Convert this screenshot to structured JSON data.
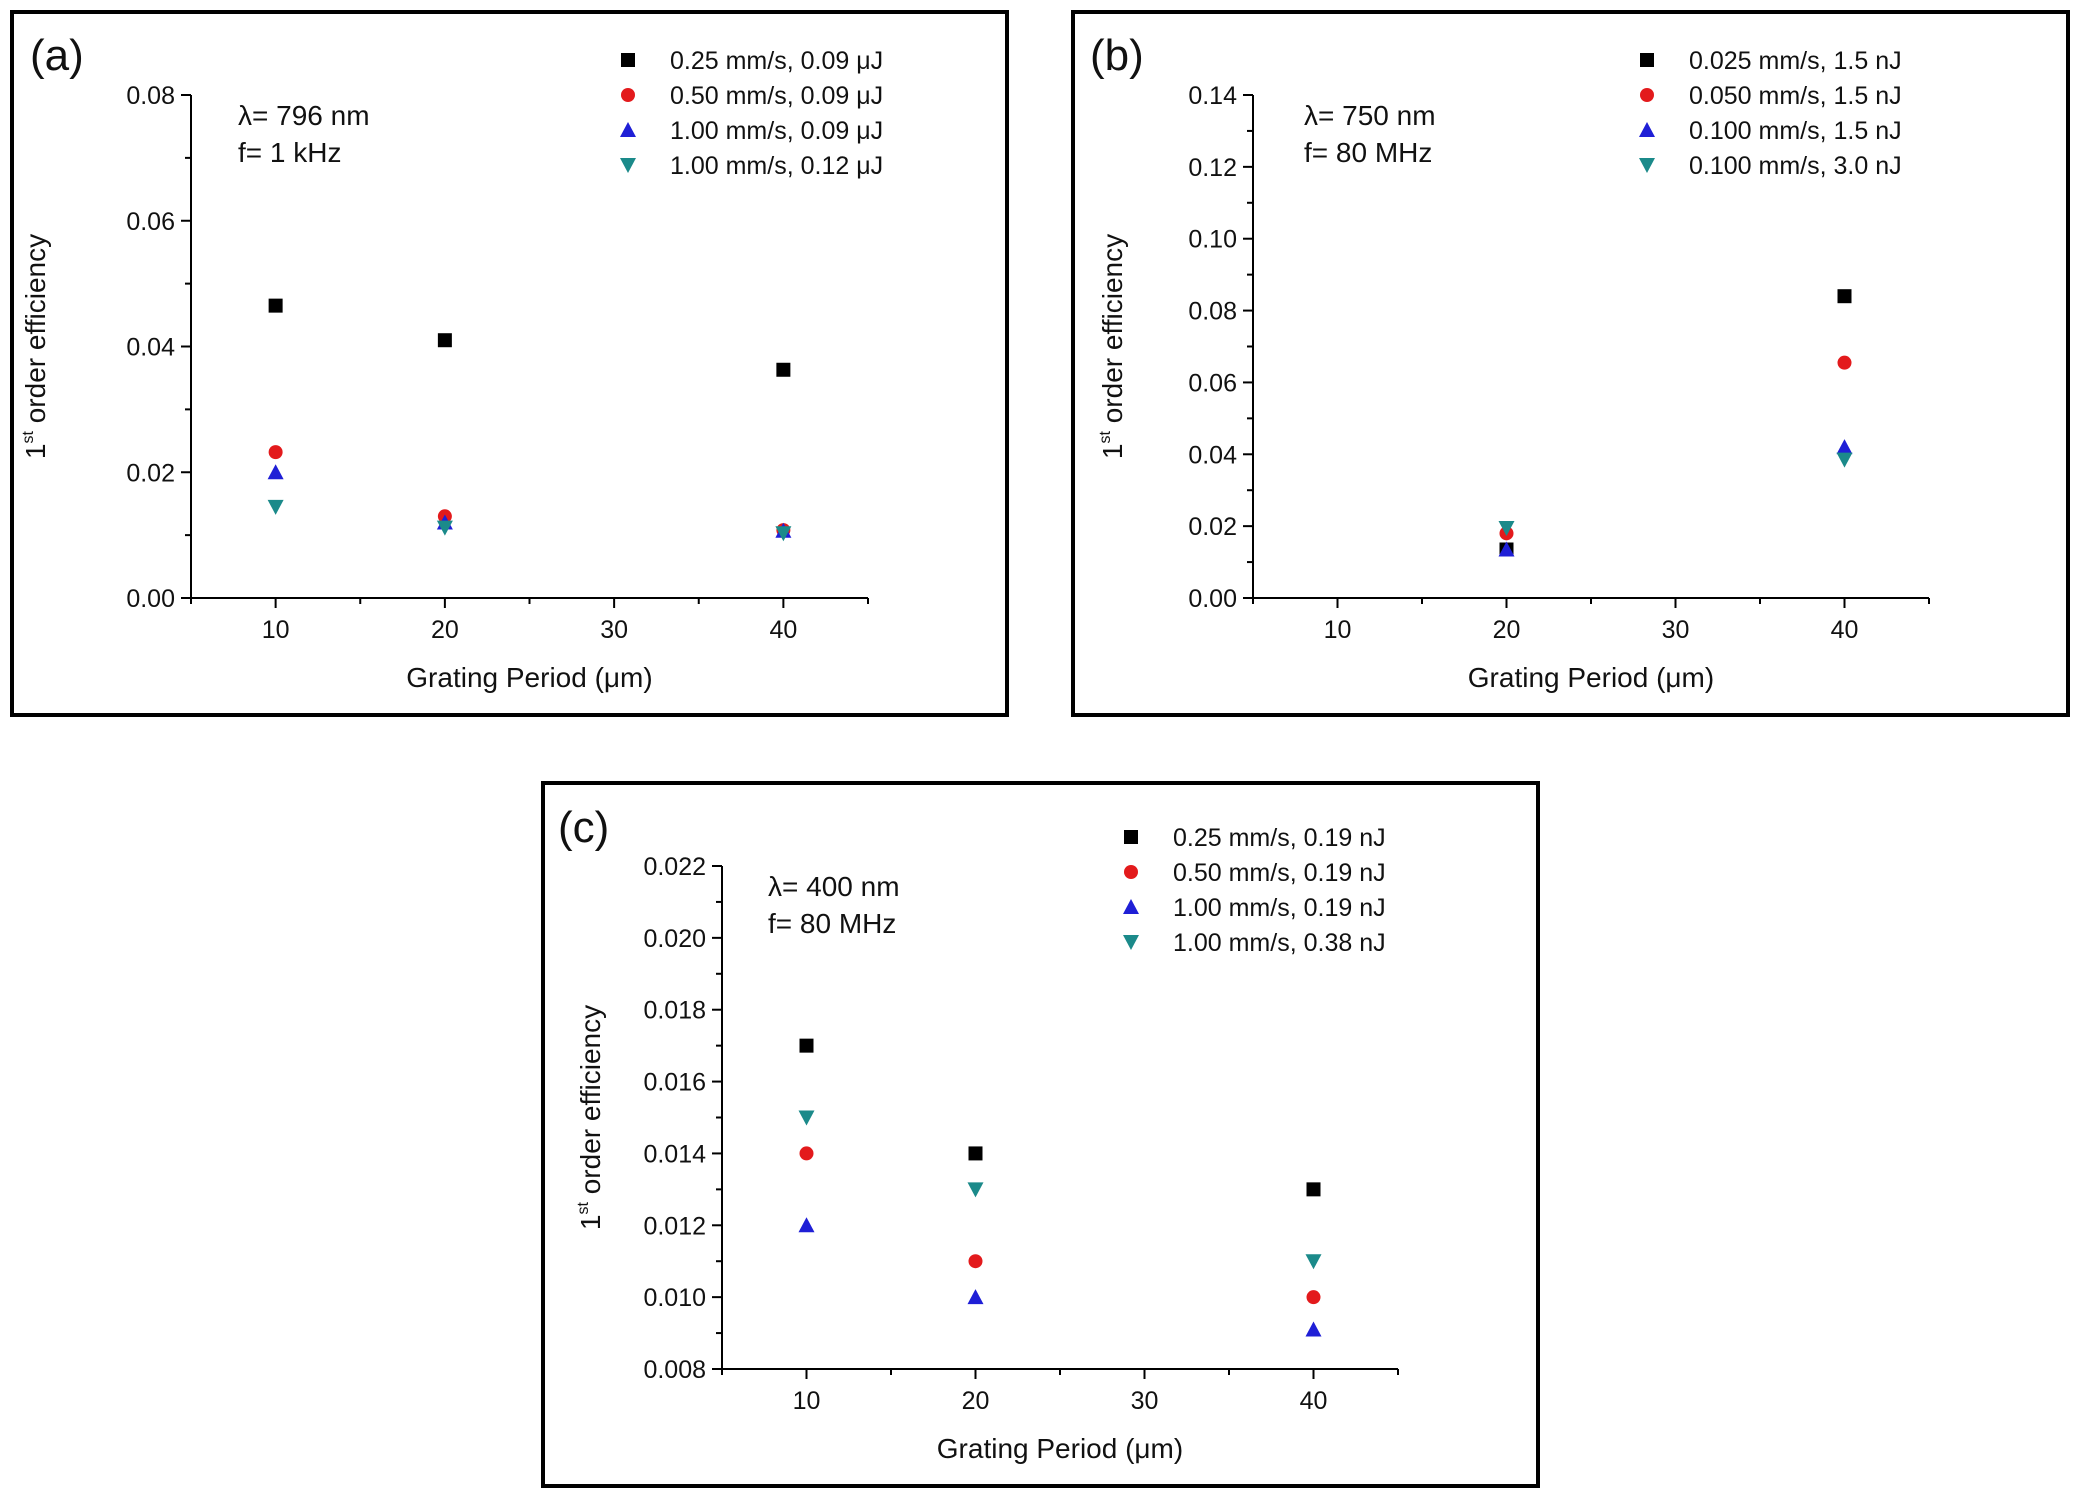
{
  "colors": {
    "black": "#000000",
    "red": "#e31a1c",
    "blue": "#1f1fd6",
    "teal": "#1b8a8a"
  },
  "chart_data": [
    {
      "panel": "a",
      "panel_label": "(a)",
      "type": "scatter",
      "xlabel": "Grating Period (μm)",
      "ylabel": "order efficiency",
      "ylabel_prefix": "1",
      "ylabel_sup": "st",
      "annotation_lines": [
        "λ= 796 nm",
        "f= 1 kHz"
      ],
      "xlim": [
        5,
        45
      ],
      "ylim": [
        0,
        0.08
      ],
      "xticks": [
        10,
        20,
        30,
        40
      ],
      "xtick_labels": [
        "10",
        "20",
        "30",
        "40"
      ],
      "yticks": [
        0,
        0.02,
        0.04,
        0.06,
        0.08
      ],
      "ytick_labels": [
        "0.00",
        "0.02",
        "0.04",
        "0.06",
        "0.08"
      ],
      "x": [
        10,
        20,
        40
      ],
      "series": [
        {
          "name": "0.25 mm/s, 0.09 μJ",
          "marker": "square",
          "color": "#000000",
          "values": [
            0.0465,
            0.041,
            0.0363
          ]
        },
        {
          "name": "0.50 mm/s, 0.09 μJ",
          "marker": "circle",
          "color": "#e31a1c",
          "values": [
            0.0232,
            0.013,
            0.0108
          ]
        },
        {
          "name": "1.00 mm/s, 0.09 μJ",
          "marker": "triangle-up",
          "color": "#1f1fd6",
          "values": [
            0.02,
            0.012,
            0.0107
          ]
        },
        {
          "name": "1.00 mm/s, 0.12 μJ",
          "marker": "triangle-down",
          "color": "#1b8a8a",
          "values": [
            0.0145,
            0.0112,
            0.0103
          ]
        }
      ]
    },
    {
      "panel": "b",
      "panel_label": "(b)",
      "type": "scatter",
      "xlabel": "Grating Period (μm)",
      "ylabel": "order efficiency",
      "ylabel_prefix": "1",
      "ylabel_sup": "st",
      "annotation_lines": [
        "λ= 750 nm",
        "f= 80 MHz"
      ],
      "xlim": [
        5,
        45
      ],
      "ylim": [
        0,
        0.14
      ],
      "xticks": [
        10,
        20,
        30,
        40
      ],
      "xtick_labels": [
        "10",
        "20",
        "30",
        "40"
      ],
      "yticks": [
        0,
        0.02,
        0.04,
        0.06,
        0.08,
        0.1,
        0.12,
        0.14
      ],
      "ytick_labels": [
        "0.00",
        "0.02",
        "0.04",
        "0.06",
        "0.08",
        "0.10",
        "0.12",
        "0.14"
      ],
      "x": [
        20,
        40
      ],
      "series": [
        {
          "name": "0.025 mm/s, 1.5 nJ",
          "marker": "square",
          "color": "#000000",
          "values": [
            0.0135,
            0.084
          ]
        },
        {
          "name": "0.050 mm/s, 1.5 nJ",
          "marker": "circle",
          "color": "#e31a1c",
          "values": [
            0.018,
            0.0655
          ]
        },
        {
          "name": "0.100 mm/s, 1.5 nJ",
          "marker": "triangle-up",
          "color": "#1f1fd6",
          "values": [
            0.0135,
            0.042
          ]
        },
        {
          "name": "0.100 mm/s, 3.0 nJ",
          "marker": "triangle-down",
          "color": "#1b8a8a",
          "values": [
            0.0195,
            0.0385
          ]
        }
      ]
    },
    {
      "panel": "c",
      "panel_label": "(c)",
      "type": "scatter",
      "xlabel": "Grating Period (μm)",
      "ylabel": "order efficiency",
      "ylabel_prefix": "1",
      "ylabel_sup": "st",
      "annotation_lines": [
        "λ= 400 nm",
        "f= 80 MHz"
      ],
      "xlim": [
        5,
        45
      ],
      "ylim": [
        0.008,
        0.022
      ],
      "xticks": [
        10,
        20,
        30,
        40
      ],
      "xtick_labels": [
        "10",
        "20",
        "30",
        "40"
      ],
      "yticks": [
        0.008,
        0.01,
        0.012,
        0.014,
        0.016,
        0.018,
        0.02,
        0.022
      ],
      "ytick_labels": [
        "0.008",
        "0.010",
        "0.012",
        "0.014",
        "0.016",
        "0.018",
        "0.020",
        "0.022"
      ],
      "x": [
        10,
        20,
        40
      ],
      "series": [
        {
          "name": "0.25 mm/s, 0.19 nJ",
          "marker": "square",
          "color": "#000000",
          "values": [
            0.017,
            0.014,
            0.013
          ]
        },
        {
          "name": "0.50 mm/s, 0.19 nJ",
          "marker": "circle",
          "color": "#e31a1c",
          "values": [
            0.014,
            0.011,
            0.01
          ]
        },
        {
          "name": "1.00 mm/s, 0.19 nJ",
          "marker": "triangle-up",
          "color": "#1f1fd6",
          "values": [
            0.012,
            0.01,
            0.0091
          ]
        },
        {
          "name": "1.00 mm/s, 0.38 nJ",
          "marker": "triangle-down",
          "color": "#1b8a8a",
          "values": [
            0.015,
            0.013,
            0.011
          ]
        }
      ]
    }
  ]
}
